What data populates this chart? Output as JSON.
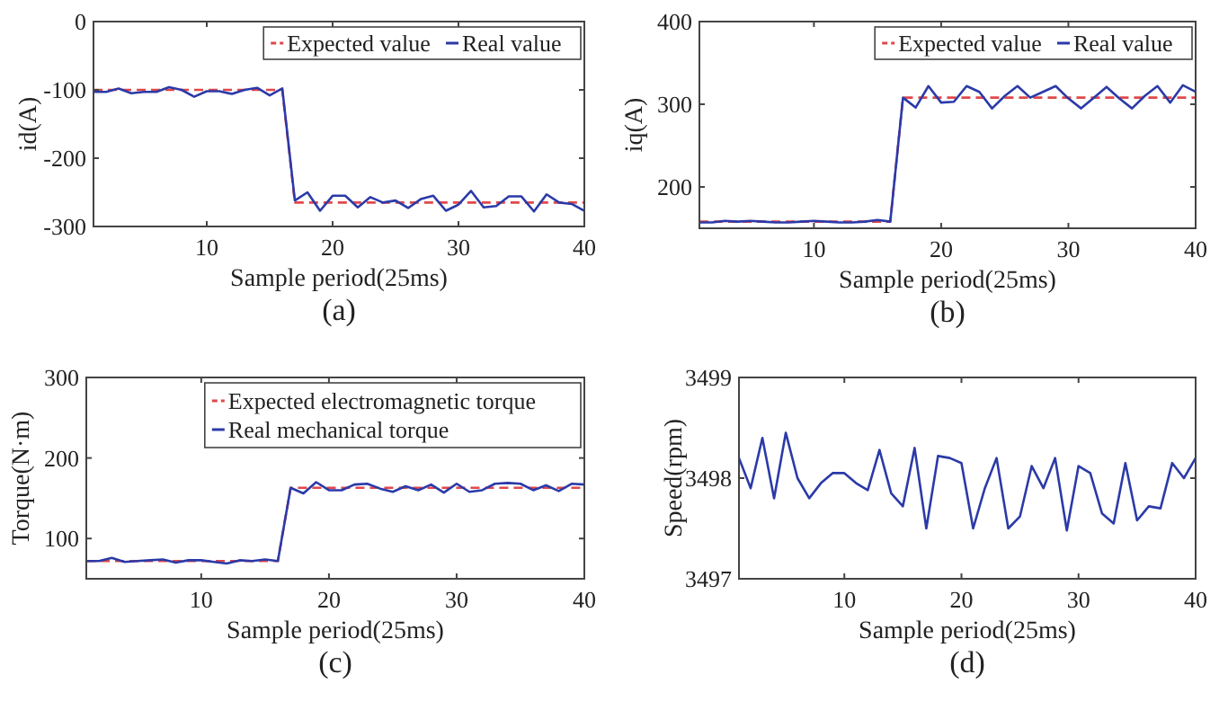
{
  "chart_data": [
    {
      "type": "line",
      "xlabel": "Sample period(25ms)",
      "ylabel": "id(A)",
      "annotations": [
        "(a)"
      ],
      "x": [
        1,
        2,
        3,
        4,
        5,
        6,
        7,
        8,
        9,
        10,
        11,
        12,
        13,
        14,
        15,
        16,
        17,
        18,
        19,
        20,
        21,
        22,
        23,
        24,
        25,
        26,
        27,
        28,
        29,
        30,
        31,
        32,
        33,
        34,
        35,
        36,
        37,
        38,
        39,
        40
      ],
      "xlim": [
        1,
        40
      ],
      "xticks": [
        10,
        20,
        30,
        40
      ],
      "ylim": [
        -300,
        0
      ],
      "yticks": [
        -300,
        -200,
        -100,
        0
      ],
      "grid": false,
      "legend": "top right",
      "series": [
        {
          "name": "Expected value",
          "color": "#e0484a",
          "line_style": "dashed",
          "values": [
            -100,
            -100,
            -100,
            -100,
            -100,
            -100,
            -100,
            -100,
            -100,
            -100,
            -100,
            -100,
            -100,
            -100,
            -100,
            -100,
            -265,
            -265,
            -265,
            -265,
            -265,
            -265,
            -265,
            -265,
            -265,
            -265,
            -265,
            -265,
            -265,
            -265,
            -265,
            -265,
            -265,
            -265,
            -265,
            -265,
            -265,
            -265,
            -265,
            -265
          ]
        },
        {
          "name": "Real value",
          "color": "#2b3aa8",
          "line_style": "solid",
          "values": [
            -103,
            -103,
            -98,
            -105,
            -103,
            -103,
            -96,
            -100,
            -110,
            -102,
            -102,
            -106,
            -100,
            -97,
            -108,
            -98,
            -262,
            -250,
            -277,
            -255,
            -255,
            -272,
            -257,
            -265,
            -262,
            -273,
            -260,
            -255,
            -277,
            -268,
            -248,
            -272,
            -270,
            -256,
            -256,
            -278,
            -253,
            -265,
            -267,
            -277
          ]
        }
      ]
    },
    {
      "type": "line",
      "xlabel": "Sample period(25ms)",
      "ylabel": "iq(A)",
      "annotations": [
        "(b)"
      ],
      "x": [
        1,
        2,
        3,
        4,
        5,
        6,
        7,
        8,
        9,
        10,
        11,
        12,
        13,
        14,
        15,
        16,
        17,
        18,
        19,
        20,
        21,
        22,
        23,
        24,
        25,
        26,
        27,
        28,
        29,
        30,
        31,
        32,
        33,
        34,
        35,
        36,
        37,
        38,
        39,
        40
      ],
      "xlim": [
        1,
        40
      ],
      "xticks": [
        10,
        20,
        30,
        40
      ],
      "ylim": [
        150,
        400
      ],
      "yticks": [
        200,
        300,
        400
      ],
      "grid": false,
      "legend": "top right",
      "series": [
        {
          "name": "Expected value",
          "color": "#e0484a",
          "line_style": "dashed",
          "values": [
            158,
            158,
            158,
            158,
            158,
            158,
            158,
            158,
            158,
            158,
            158,
            158,
            158,
            158,
            158,
            158,
            308,
            308,
            308,
            308,
            308,
            308,
            308,
            308,
            308,
            308,
            308,
            308,
            308,
            308,
            308,
            308,
            308,
            308,
            308,
            308,
            308,
            308,
            308,
            308
          ]
        },
        {
          "name": "Real value",
          "color": "#2b3aa8",
          "line_style": "solid",
          "values": [
            157,
            157,
            159,
            158,
            159,
            158,
            157,
            157,
            158,
            159,
            158,
            157,
            157,
            158,
            160,
            158,
            308,
            296,
            322,
            302,
            303,
            322,
            315,
            295,
            310,
            322,
            308,
            315,
            322,
            307,
            295,
            308,
            321,
            307,
            295,
            310,
            322,
            302,
            323,
            315
          ]
        }
      ]
    },
    {
      "type": "line",
      "xlabel": "Sample period(25ms)",
      "ylabel": "Torque(N·m)",
      "annotations": [
        "(c)"
      ],
      "x": [
        1,
        2,
        3,
        4,
        5,
        6,
        7,
        8,
        9,
        10,
        11,
        12,
        13,
        14,
        15,
        16,
        17,
        18,
        19,
        20,
        21,
        22,
        23,
        24,
        25,
        26,
        27,
        28,
        29,
        30,
        31,
        32,
        33,
        34,
        35,
        36,
        37,
        38,
        39,
        40
      ],
      "xlim": [
        1,
        40
      ],
      "xticks": [
        10,
        20,
        30,
        40
      ],
      "ylim": [
        50,
        300
      ],
      "yticks": [
        100,
        200,
        300
      ],
      "grid": false,
      "legend": "top right",
      "series": [
        {
          "name": "Expected electromagnetic torque",
          "color": "#e0484a",
          "line_style": "dashed",
          "values": [
            72,
            72,
            72,
            72,
            72,
            72,
            72,
            72,
            72,
            72,
            72,
            72,
            72,
            72,
            72,
            72,
            163,
            163,
            163,
            163,
            163,
            163,
            163,
            163,
            163,
            163,
            163,
            163,
            163,
            163,
            163,
            163,
            163,
            163,
            163,
            163,
            163,
            163,
            163,
            163
          ]
        },
        {
          "name": "Real mechanical torque",
          "color": "#2b3aa8",
          "line_style": "solid",
          "values": [
            72,
            72,
            76,
            71,
            72,
            73,
            74,
            70,
            73,
            73,
            71,
            69,
            73,
            72,
            74,
            72,
            163,
            156,
            170,
            160,
            160,
            167,
            168,
            162,
            158,
            165,
            160,
            167,
            157,
            168,
            158,
            160,
            168,
            169,
            168,
            160,
            166,
            159,
            168,
            167
          ]
        }
      ]
    },
    {
      "type": "line",
      "xlabel": "Sample period(25ms)",
      "ylabel": "Speed(rpm)",
      "annotations": [
        "(d)"
      ],
      "x": [
        1,
        2,
        3,
        4,
        5,
        6,
        7,
        8,
        9,
        10,
        11,
        12,
        13,
        14,
        15,
        16,
        17,
        18,
        19,
        20,
        21,
        22,
        23,
        24,
        25,
        26,
        27,
        28,
        29,
        30,
        31,
        32,
        33,
        34,
        35,
        36,
        37,
        38,
        39,
        40
      ],
      "xlim": [
        1,
        40
      ],
      "xticks": [
        10,
        20,
        30,
        40
      ],
      "ylim": [
        3497,
        3499
      ],
      "yticks": [
        3497,
        3498,
        3499
      ],
      "grid": false,
      "series": [
        {
          "color": "#2b3aa8",
          "line_style": "solid",
          "values": [
            3498.2,
            3497.9,
            3498.4,
            3497.8,
            3498.45,
            3498.0,
            3497.8,
            3497.95,
            3498.05,
            3498.05,
            3497.95,
            3497.88,
            3498.28,
            3497.85,
            3497.72,
            3498.3,
            3497.5,
            3498.22,
            3498.2,
            3498.15,
            3497.5,
            3497.9,
            3498.2,
            3497.5,
            3497.62,
            3498.12,
            3497.9,
            3498.2,
            3497.48,
            3498.12,
            3498.05,
            3497.65,
            3497.55,
            3498.15,
            3497.58,
            3497.72,
            3497.7,
            3498.15,
            3498.0,
            3498.2
          ]
        }
      ]
    }
  ]
}
